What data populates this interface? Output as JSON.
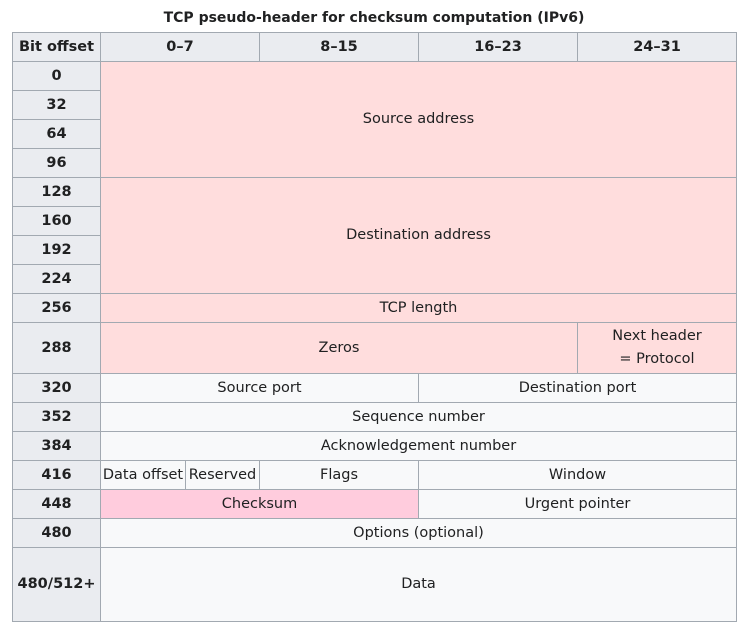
{
  "caption": "TCP pseudo-header for checksum computation (IPv6)",
  "colors": {
    "header_bg": "#eaecf0",
    "cell_bg": "#f8f9fa",
    "pseudo_header_bg": "#ffdddd",
    "checksum_bg": "#ffccdd",
    "border": "#a2a9b1"
  },
  "columns": {
    "bit_offset": "Bit offset",
    "c0": "0–7",
    "c1": "8–15",
    "c2": "16–23",
    "c3": "24–31"
  },
  "offsets": [
    "0",
    "32",
    "64",
    "96",
    "128",
    "160",
    "192",
    "224",
    "256",
    "288",
    "320",
    "352",
    "384",
    "416",
    "448",
    "480",
    "480/512+"
  ],
  "fields": {
    "source_address": "Source address",
    "destination_address": "Destination address",
    "tcp_length": "TCP length",
    "zeros": "Zeros",
    "next_header_line1": "Next header",
    "next_header_line2": "= Protocol",
    "source_port": "Source port",
    "destination_port": "Destination port",
    "sequence_number": "Sequence number",
    "acknowledgement_number": "Acknowledgement number",
    "data_offset": "Data offset",
    "reserved": "Reserved",
    "flags": "Flags",
    "window": "Window",
    "checksum": "Checksum",
    "urgent_pointer": "Urgent pointer",
    "options": "Options (optional)",
    "data": "Data"
  }
}
